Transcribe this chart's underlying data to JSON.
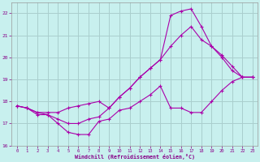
{
  "xlabel": "Windchill (Refroidissement éolien,°C)",
  "bg_color": "#c8f0ee",
  "grid_color": "#aacece",
  "line_color": "#aa00aa",
  "ylim": [
    16,
    22.5
  ],
  "xlim": [
    -0.5,
    23.5
  ],
  "yticks": [
    16,
    17,
    18,
    19,
    20,
    21,
    22
  ],
  "xticks": [
    0,
    1,
    2,
    3,
    4,
    5,
    6,
    7,
    8,
    9,
    10,
    11,
    12,
    13,
    14,
    15,
    16,
    17,
    18,
    19,
    20,
    21,
    22,
    23
  ],
  "line1_x": [
    0,
    1,
    2,
    3,
    4,
    5,
    6,
    7,
    8,
    9,
    10,
    11,
    12,
    13,
    14,
    15,
    16,
    17,
    18,
    19,
    20,
    21,
    22,
    23
  ],
  "line1_y": [
    17.8,
    17.7,
    17.4,
    17.4,
    17.0,
    16.6,
    16.5,
    16.5,
    17.1,
    17.2,
    17.6,
    17.7,
    18.0,
    18.3,
    18.7,
    17.7,
    17.7,
    17.5,
    17.5,
    18.0,
    18.5,
    18.9,
    19.1,
    19.1
  ],
  "line2_x": [
    0,
    1,
    2,
    3,
    4,
    5,
    6,
    7,
    8,
    9,
    10,
    11,
    12,
    13,
    14,
    15,
    16,
    17,
    18,
    19,
    20,
    21,
    22,
    23
  ],
  "line2_y": [
    17.8,
    17.7,
    17.5,
    17.5,
    17.5,
    17.7,
    17.8,
    17.9,
    18.0,
    17.7,
    18.2,
    18.6,
    19.1,
    19.5,
    19.9,
    20.5,
    21.0,
    21.4,
    20.8,
    20.5,
    20.1,
    19.6,
    19.1,
    19.1
  ],
  "line3_x": [
    0,
    1,
    2,
    3,
    4,
    5,
    6,
    7,
    8,
    9,
    10,
    11,
    12,
    13,
    14,
    15,
    16,
    17,
    18,
    19,
    20,
    21,
    22,
    23
  ],
  "line3_y": [
    17.8,
    17.7,
    17.5,
    17.4,
    17.2,
    17.0,
    17.0,
    17.2,
    17.3,
    17.7,
    18.2,
    18.6,
    19.1,
    19.5,
    19.9,
    21.9,
    22.1,
    22.2,
    21.4,
    20.5,
    20.0,
    19.4,
    19.1,
    19.1
  ]
}
